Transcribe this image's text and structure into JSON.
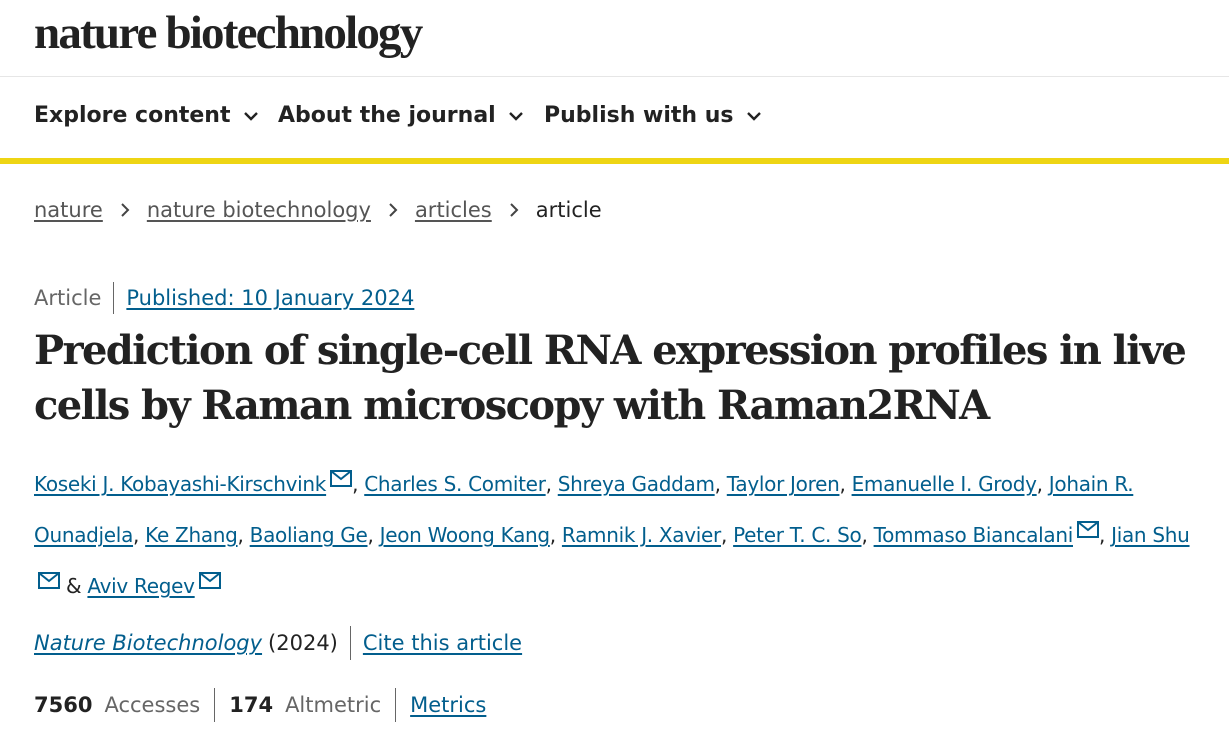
{
  "site": {
    "logo_text": "nature biotechnology"
  },
  "nav": {
    "items": [
      {
        "label": "Explore content"
      },
      {
        "label": "About the journal"
      },
      {
        "label": "Publish with us"
      }
    ]
  },
  "breadcrumb": {
    "links": [
      "nature",
      "nature biotechnology",
      "articles"
    ],
    "current": "article"
  },
  "article": {
    "type": "Article",
    "published": "Published: 10 January 2024",
    "title": "Prediction of single-cell RNA expression profiles in live cells by Raman microscopy with Raman2RNA",
    "authors": [
      {
        "name": "Koseki J. Kobayashi-Kirschvink",
        "mail": true
      },
      {
        "name": "Charles S. Comiter",
        "mail": false
      },
      {
        "name": "Shreya Gaddam",
        "mail": false
      },
      {
        "name": "Taylor Joren",
        "mail": false
      },
      {
        "name": "Emanuelle I. Grody",
        "mail": false
      },
      {
        "name": "Johain R. Ounadjela",
        "mail": false
      },
      {
        "name": "Ke Zhang",
        "mail": false
      },
      {
        "name": "Baoliang Ge",
        "mail": false
      },
      {
        "name": "Jeon Woong Kang",
        "mail": false
      },
      {
        "name": "Ramnik J. Xavier",
        "mail": false
      },
      {
        "name": "Peter T. C. So",
        "mail": false
      },
      {
        "name": "Tommaso Biancalani",
        "mail": true
      },
      {
        "name": "Jian Shu",
        "mail": true
      },
      {
        "name": "Aviv Regev",
        "mail": true
      }
    ],
    "author_separator": ",",
    "author_last_separator": "&",
    "journal": "Nature Biotechnology",
    "year": "(2024)",
    "cite_label": "Cite this article"
  },
  "metrics": {
    "accesses_value": "7560",
    "accesses_label": "Accesses",
    "altmetric_value": "174",
    "altmetric_label": "Altmetric",
    "metrics_link": "Metrics"
  },
  "icons": [
    "chevron-down-icon",
    "chevron-right-icon",
    "mail-icon"
  ],
  "colors": {
    "link": "#025e8d",
    "accent_bar": "#eed514",
    "text": "#222222",
    "muted": "#666666"
  }
}
